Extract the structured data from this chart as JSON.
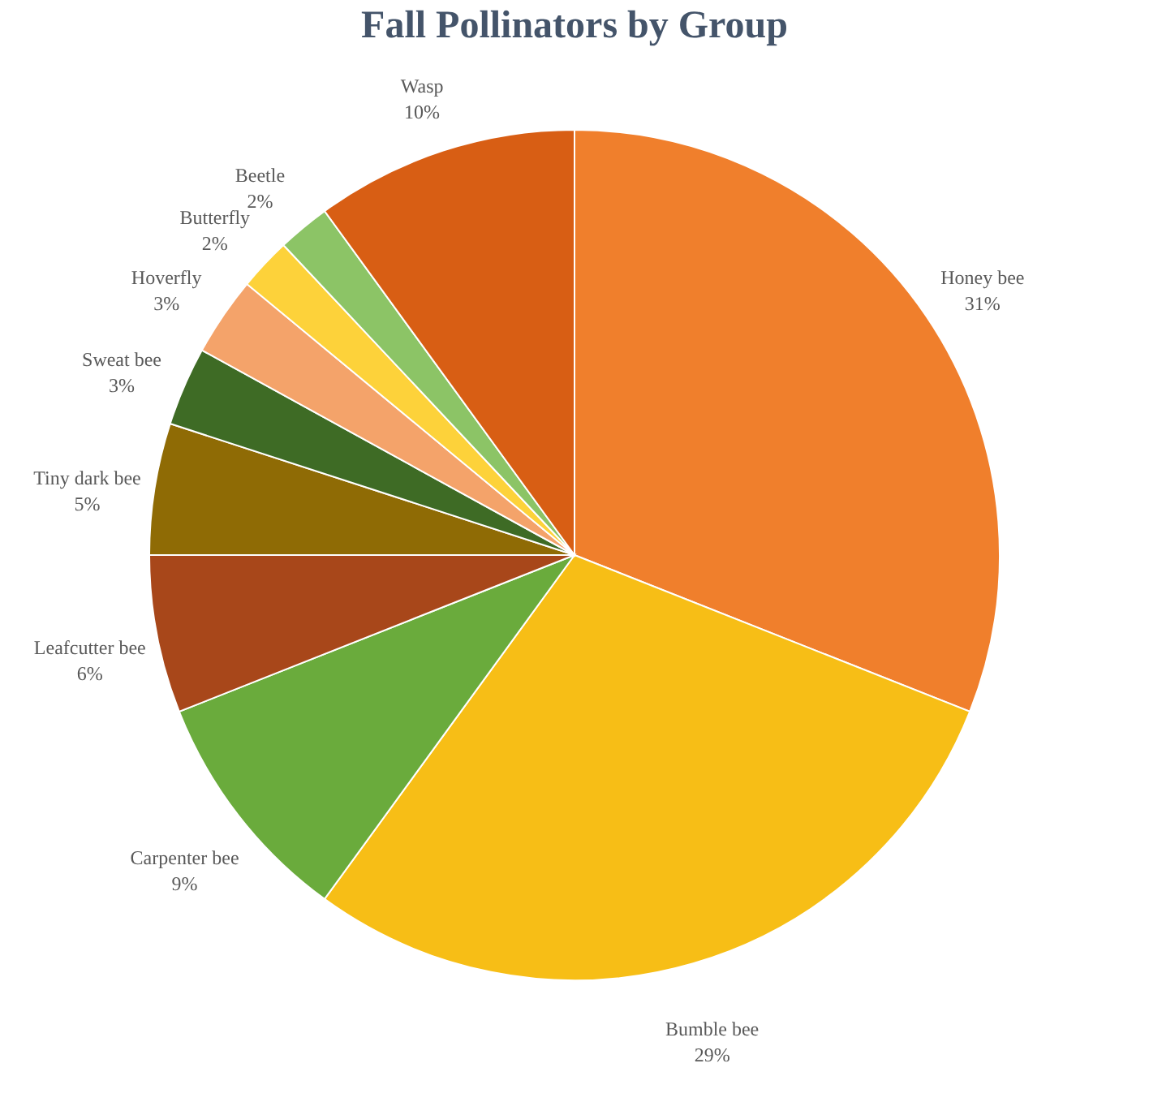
{
  "chart_data": {
    "type": "pie",
    "title": "Fall Pollinators by Group",
    "categories": [
      "Honey bee",
      "Bumble bee",
      "Carpenter bee",
      "Leafcutter bee",
      "Tiny dark bee",
      "Sweat bee",
      "Hoverfly",
      "Butterfly",
      "Beetle",
      "Wasp"
    ],
    "values": [
      31,
      29,
      9,
      6,
      5,
      3,
      3,
      2,
      2,
      10
    ],
    "value_labels": [
      "31%",
      "29%",
      "9%",
      "6%",
      "5%",
      "3%",
      "3%",
      "2%",
      "2%",
      "10%"
    ],
    "colors": [
      "#f07f2c",
      "#f7be16",
      "#6aab3c",
      "#a8471a",
      "#8f6b05",
      "#3e6b25",
      "#f4a36a",
      "#fdd23a",
      "#8cc466",
      "#d85e14"
    ],
    "legend": false
  }
}
